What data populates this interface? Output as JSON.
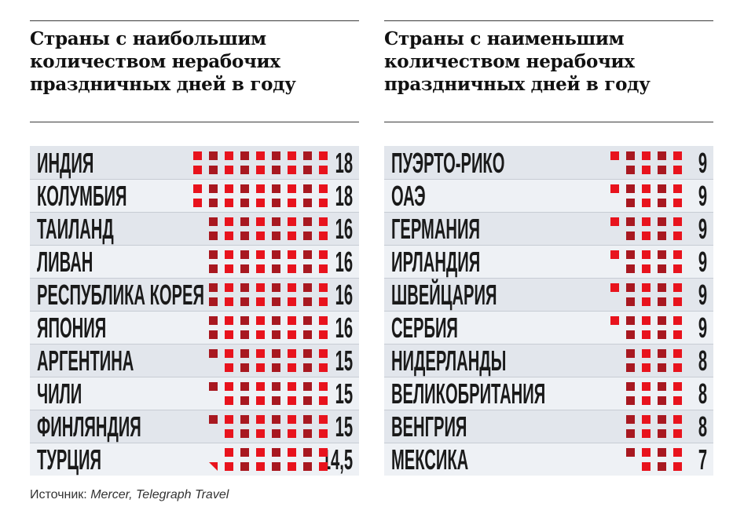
{
  "source": {
    "label": "Источник:",
    "names": "Mercer, Telegraph Travel"
  },
  "colors": {
    "square_light": "#e8131d",
    "square_dark": "#a81820",
    "panel_bg": "#e2e6ec",
    "row_alt": "#eef1f5"
  },
  "chart_data": [
    {
      "type": "table",
      "title": "Страны с наибольшим количеством нерабочих праздничных дней в году",
      "categories": [
        "ИНДИЯ",
        "КОЛУМБИЯ",
        "ТАИЛАНД",
        "ЛИВАН",
        "РЕСПУБЛИКА КОРЕЯ",
        "ЯПОНИЯ",
        "АРГЕНТИНА",
        "ЧИЛИ",
        "ФИНЛЯНДИЯ",
        "ТУРЦИЯ"
      ],
      "values": [
        18,
        18,
        16,
        16,
        16,
        16,
        15,
        15,
        15,
        14.5
      ],
      "value_labels": [
        "18",
        "18",
        "16",
        "16",
        "16",
        "16",
        "15",
        "15",
        "15",
        "14,5"
      ],
      "unit": "days",
      "encoding": "one square per day"
    },
    {
      "type": "table",
      "title": "Страны с наименьшим количеством нерабочих праздничных дней в году",
      "categories": [
        "ПУЭРТО-РИКО",
        "ОАЭ",
        "ГЕРМАНИЯ",
        "ИРЛАНДИЯ",
        "ШВЕЙЦАРИЯ",
        "СЕРБИЯ",
        "НИДЕРЛАНДЫ",
        "ВЕЛИКОБРИТАНИЯ",
        "ВЕНГРИЯ",
        "МЕКСИКА"
      ],
      "values": [
        9,
        9,
        9,
        9,
        9,
        9,
        8,
        8,
        8,
        7
      ],
      "value_labels": [
        "9",
        "9",
        "9",
        "9",
        "9",
        "9",
        "8",
        "8",
        "8",
        "7"
      ],
      "unit": "days",
      "encoding": "one square per day"
    }
  ]
}
